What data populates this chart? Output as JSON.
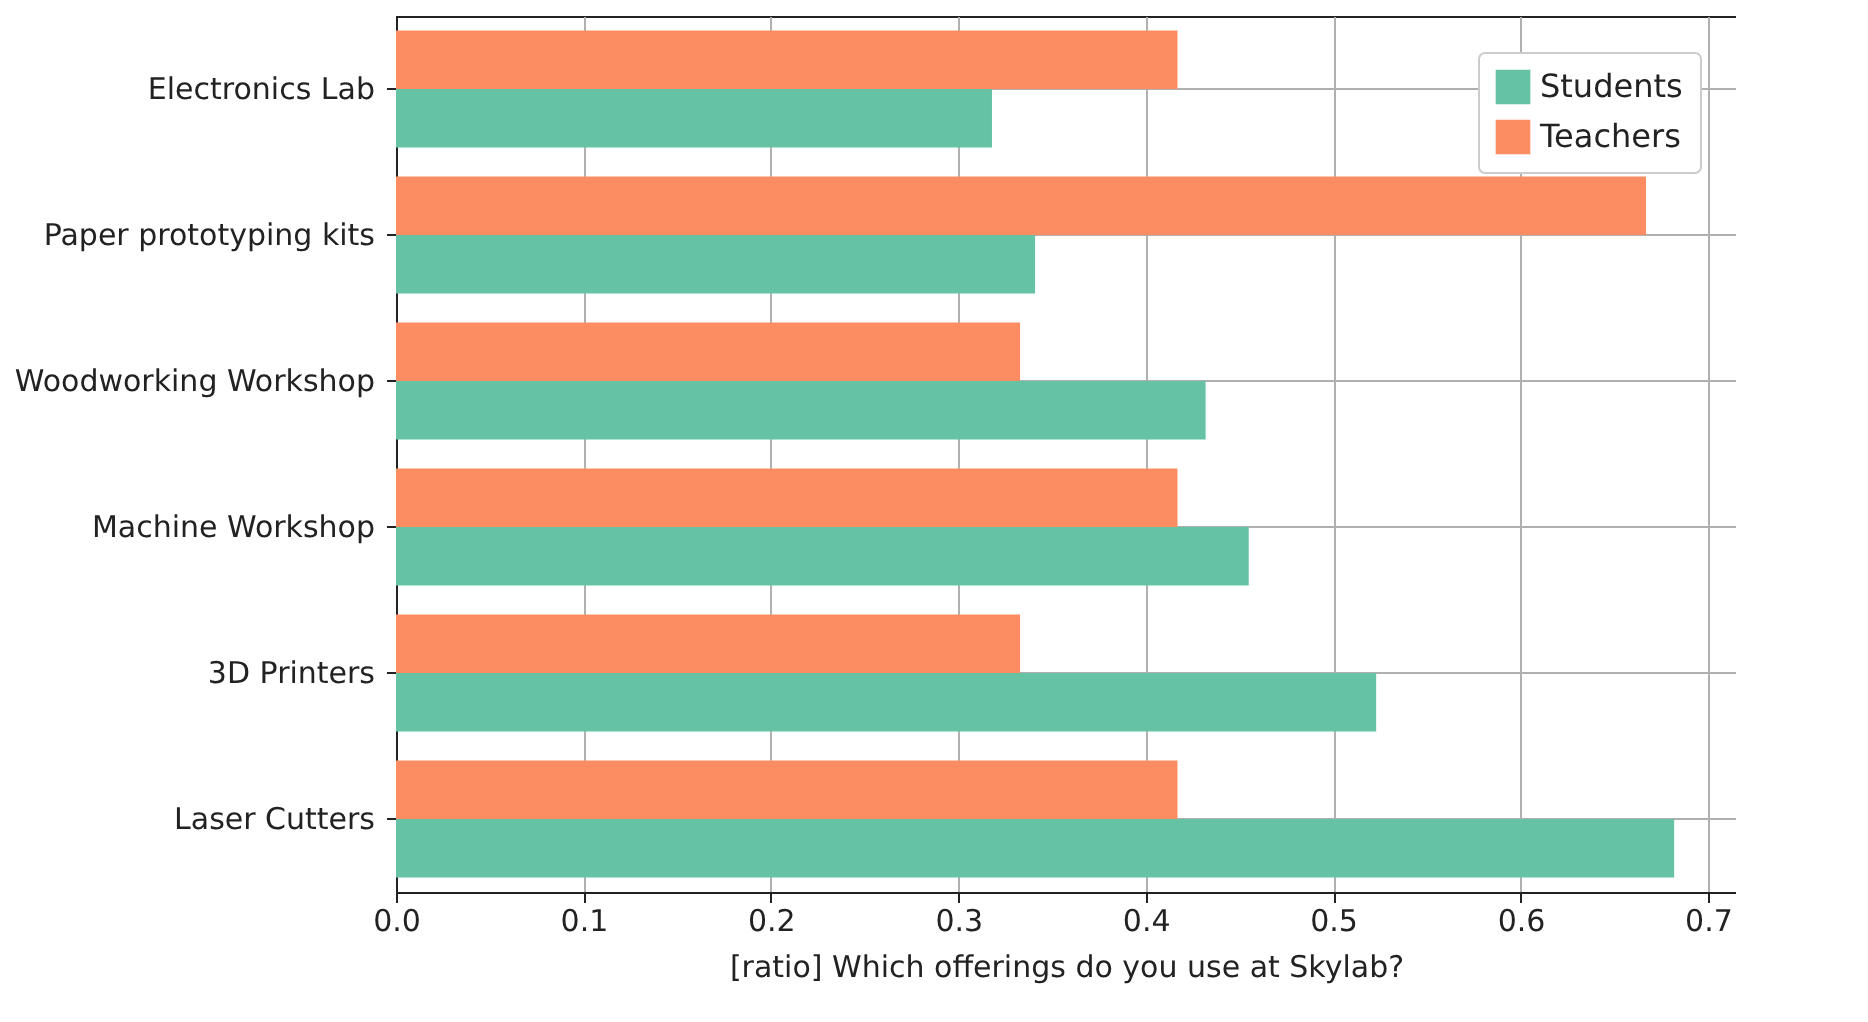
{
  "chart_data": {
    "type": "bar",
    "orientation": "horizontal",
    "xlabel": "[ratio] Which offerings do you use at Skylab?",
    "categories": [
      "Electronics Lab",
      "Paper prototyping kits",
      "Woodworking Workshop",
      "Machine Workshop",
      "3D Printers",
      "Laser Cutters"
    ],
    "series": [
      {
        "name": "Students",
        "color": "#66c2a5",
        "values": [
          0.318,
          0.341,
          0.432,
          0.455,
          0.523,
          0.682
        ]
      },
      {
        "name": "Teachers",
        "color": "#fc8d62",
        "values": [
          0.417,
          0.667,
          0.333,
          0.417,
          0.333,
          0.417
        ]
      }
    ],
    "xlim": [
      0,
      0.715
    ],
    "xticks": [
      {
        "value": 0,
        "label": "0.0"
      },
      0.1,
      0.2,
      0.3,
      0.4,
      0.5,
      0.6,
      0.7
    ],
    "grid": true,
    "legend": "top right"
  }
}
